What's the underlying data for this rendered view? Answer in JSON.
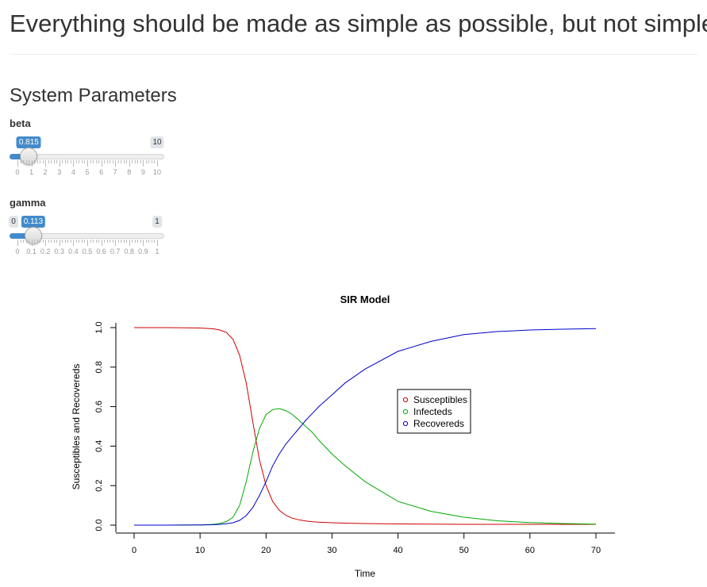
{
  "page": {
    "title": "Everything should be made as simple as possible, but not simpler",
    "section_title": "System Parameters"
  },
  "sliders": [
    {
      "label": "beta",
      "min": 0,
      "max": 10,
      "value": 0.815,
      "min_label": "0",
      "max_label": "10",
      "value_label": "0.815",
      "show_min_bubble": false,
      "ticks": [
        "0",
        "1",
        "2",
        "3",
        "4",
        "5",
        "6",
        "7",
        "8",
        "9",
        "10"
      ]
    },
    {
      "label": "gamma",
      "min": 0,
      "max": 1,
      "value": 0.113,
      "min_label": "0",
      "max_label": "1",
      "value_label": "0.113",
      "show_min_bubble": true,
      "ticks": [
        "0",
        "0.1",
        "0.2",
        "0.3",
        "0.4",
        "0.5",
        "0.6",
        "0.7",
        "0.8",
        "0.9",
        "1"
      ]
    }
  ],
  "colors": {
    "accent": "#428bca",
    "susceptibles": "#cc0000",
    "infecteds": "#00aa00",
    "recovereds": "#0000cc"
  },
  "chart_data": {
    "type": "line",
    "title": "SIR Model",
    "xlabel": "Time",
    "ylabel": "Susceptibles and Recovereds",
    "xlim": [
      0,
      70
    ],
    "ylim": [
      0,
      1
    ],
    "xticks": [
      0,
      10,
      20,
      30,
      40,
      50,
      60,
      70
    ],
    "yticks": [
      "0.0",
      "0.2",
      "0.4",
      "0.6",
      "0.8",
      "1.0"
    ],
    "grid": false,
    "legend_position": "center-right",
    "x": [
      0,
      5,
      10,
      12,
      13,
      14,
      15,
      16,
      17,
      18,
      19,
      20,
      21,
      22,
      23,
      24,
      25,
      26,
      27,
      28,
      30,
      32,
      35,
      40,
      45,
      50,
      55,
      60,
      65,
      70
    ],
    "series": [
      {
        "name": "Susceptibles",
        "values": [
          1.0,
          1.0,
          0.998,
          0.994,
          0.988,
          0.975,
          0.94,
          0.86,
          0.72,
          0.52,
          0.33,
          0.2,
          0.12,
          0.075,
          0.05,
          0.035,
          0.027,
          0.021,
          0.017,
          0.015,
          0.012,
          0.01,
          0.008,
          0.006,
          0.005,
          0.004,
          0.004,
          0.004,
          0.004,
          0.004
        ]
      },
      {
        "name": "Infecteds",
        "values": [
          0.0,
          0.0,
          0.001,
          0.004,
          0.008,
          0.018,
          0.04,
          0.1,
          0.22,
          0.37,
          0.49,
          0.56,
          0.585,
          0.59,
          0.58,
          0.56,
          0.53,
          0.5,
          0.47,
          0.43,
          0.36,
          0.3,
          0.22,
          0.12,
          0.07,
          0.04,
          0.022,
          0.013,
          0.008,
          0.005
        ]
      },
      {
        "name": "Recovereds",
        "values": [
          0.0,
          0.0,
          0.001,
          0.002,
          0.004,
          0.007,
          0.012,
          0.024,
          0.048,
          0.09,
          0.15,
          0.22,
          0.3,
          0.36,
          0.41,
          0.45,
          0.49,
          0.53,
          0.565,
          0.6,
          0.66,
          0.72,
          0.79,
          0.88,
          0.93,
          0.965,
          0.98,
          0.988,
          0.992,
          0.995
        ]
      }
    ]
  }
}
